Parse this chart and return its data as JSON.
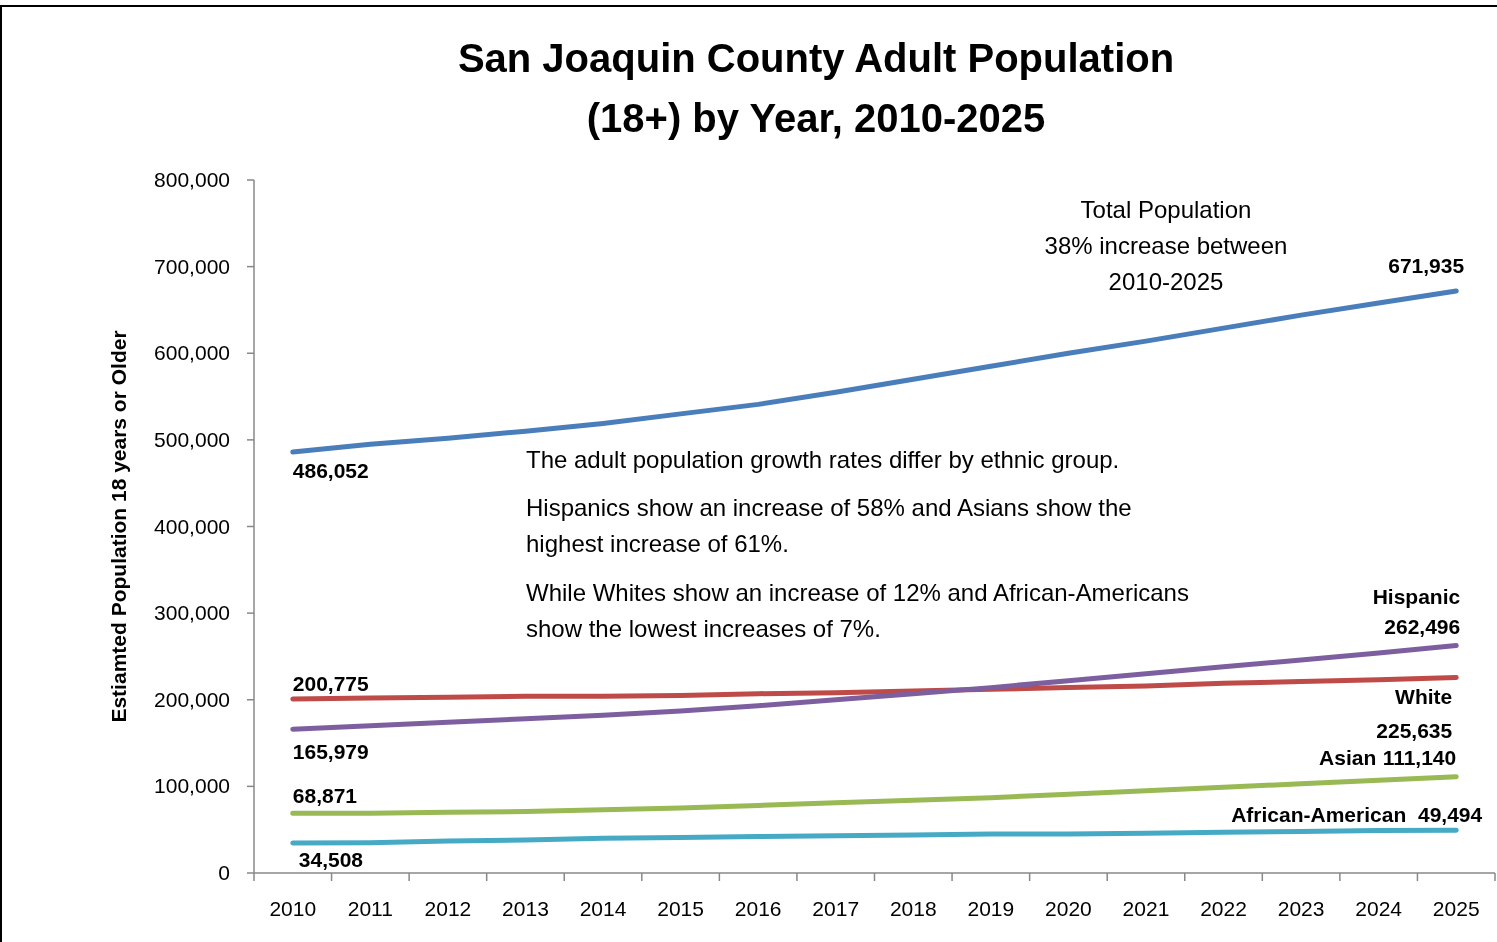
{
  "chart_data": {
    "type": "line",
    "title": "San Joaquin County Adult Population\n(18+) by Year, 2010-2025",
    "ylabel": "Estiamted Population 18 years or Older",
    "categories": [
      "2010",
      "2011",
      "2012",
      "2013",
      "2014",
      "2015",
      "2016",
      "2017",
      "2018",
      "2019",
      "2020",
      "2021",
      "2022",
      "2023",
      "2024",
      "2025"
    ],
    "series": [
      {
        "color": "#4a7ebb",
        "values": [
          486052,
          495000,
          502000,
          510000,
          519000,
          530000,
          541000,
          555000,
          570000,
          585000,
          600000,
          614000,
          629000,
          644000,
          658000,
          671935
        ],
        "value_labels": [
          "486,052",
          null,
          null,
          null,
          null,
          null,
          null,
          null,
          null,
          null,
          null,
          null,
          null,
          null,
          null,
          "671,935"
        ]
      },
      {
        "name": "White",
        "color": "#be4b48",
        "values": [
          200775,
          202000,
          203000,
          204000,
          204000,
          205000,
          207000,
          208000,
          210000,
          212000,
          214000,
          216000,
          219000,
          221000,
          223000,
          225635
        ],
        "value_labels": [
          "200,775",
          null,
          null,
          null,
          null,
          null,
          null,
          null,
          null,
          null,
          null,
          null,
          null,
          null,
          null,
          "225,635"
        ]
      },
      {
        "name": "Hispanic",
        "color": "#7d5fa0",
        "values": [
          165979,
          170000,
          174000,
          178000,
          182000,
          187000,
          193000,
          200000,
          207000,
          214000,
          222000,
          230000,
          238000,
          246000,
          254000,
          262496
        ],
        "value_labels": [
          "165,979",
          null,
          null,
          null,
          null,
          null,
          null,
          null,
          null,
          null,
          null,
          null,
          null,
          null,
          null,
          "262,496"
        ]
      },
      {
        "name": "Asian",
        "color": "#98b954",
        "values": [
          68871,
          69000,
          70000,
          71000,
          73000,
          75000,
          78000,
          81000,
          84000,
          87000,
          91000,
          95000,
          99000,
          103000,
          107000,
          111140
        ],
        "value_labels": [
          "68,871",
          null,
          null,
          null,
          null,
          null,
          null,
          null,
          null,
          null,
          null,
          null,
          null,
          null,
          null,
          "111,140"
        ]
      },
      {
        "name": "African-American",
        "color": "#46aac5",
        "values": [
          34508,
          35000,
          37000,
          38000,
          40000,
          41000,
          42000,
          43000,
          44000,
          45000,
          45000,
          46000,
          47000,
          48000,
          49000,
          49494
        ],
        "value_labels": [
          "34,508",
          null,
          null,
          null,
          null,
          null,
          null,
          null,
          null,
          null,
          null,
          null,
          null,
          null,
          null,
          "49,494"
        ]
      }
    ],
    "ylim": [
      0,
      800000
    ],
    "yticks": [
      {
        "value": 0,
        "label": "0"
      },
      {
        "value": 100000,
        "label": "100,000"
      },
      {
        "value": 200000,
        "label": "200,000"
      },
      {
        "value": 300000,
        "label": "300,000"
      },
      {
        "value": 400000,
        "label": "400,000"
      },
      {
        "value": 500000,
        "label": "500,000"
      },
      {
        "value": 600000,
        "label": "600,000"
      },
      {
        "value": 700000,
        "label": "700,000"
      },
      {
        "value": 800000,
        "label": "800,000"
      }
    ],
    "annotations": [
      "Total Population\n38% increase between\n2010-2025",
      "The adult population growth rates differ by ethnic group.",
      "Hispanics show an increase of  58% and Asians show the\nhighest increase of 61%.",
      "While Whites  show an increase of 12% and African-Americans\nshow the lowest increases of 7%."
    ],
    "grid": false,
    "legend": false,
    "marker": "none",
    "line_style": "solid"
  }
}
